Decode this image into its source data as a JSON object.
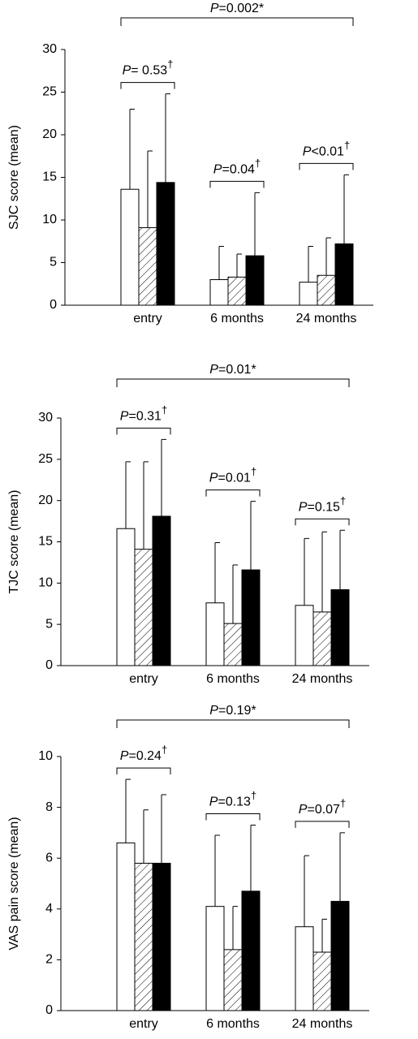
{
  "chart_data": [
    {
      "type": "bar",
      "ylabel": "SJC score (mean)",
      "categories": [
        "entry",
        "6 months",
        "24 months"
      ],
      "ylim": [
        0,
        30
      ],
      "yticks": [
        0,
        5,
        10,
        15,
        20,
        25,
        30
      ],
      "series": [
        {
          "color": "#ffffff",
          "values": [
            13.6,
            3.0,
            2.7
          ],
          "errors": [
            9.4,
            3.9,
            4.2
          ]
        },
        {
          "color": "#ffffff",
          "hatch": true,
          "values": [
            9.1,
            3.3,
            3.5
          ],
          "errors": [
            9.0,
            2.7,
            4.4
          ]
        },
        {
          "color": "#000000",
          "values": [
            14.4,
            5.8,
            7.2
          ],
          "errors": [
            10.4,
            7.4,
            8.1
          ]
        }
      ],
      "annotations": [
        "P=0.002*",
        "P= 0.53†",
        "P=0.04†",
        "P<0.01†"
      ]
    },
    {
      "type": "bar",
      "ylabel": "TJC score (mean)",
      "categories": [
        "entry",
        "6 months",
        "24 months"
      ],
      "ylim": [
        0,
        30
      ],
      "yticks": [
        0,
        5,
        10,
        15,
        20,
        25,
        30
      ],
      "series": [
        {
          "color": "#ffffff",
          "values": [
            16.6,
            7.6,
            7.3
          ],
          "errors": [
            8.1,
            7.3,
            8.1
          ]
        },
        {
          "color": "#ffffff",
          "hatch": true,
          "values": [
            14.1,
            5.1,
            6.5
          ],
          "errors": [
            10.6,
            7.1,
            9.7
          ]
        },
        {
          "color": "#000000",
          "values": [
            18.1,
            11.6,
            9.2
          ],
          "errors": [
            9.3,
            8.3,
            7.2
          ]
        }
      ],
      "annotations": [
        "P=0.01*",
        "P=0.31†",
        "P=0.01†",
        "P=0.15†"
      ]
    },
    {
      "type": "bar",
      "ylabel": "VAS pain score (mean)",
      "categories": [
        "entry",
        "6 months",
        "24 months"
      ],
      "ylim": [
        0,
        10
      ],
      "yticks": [
        0,
        2,
        4,
        6,
        8,
        10
      ],
      "series": [
        {
          "color": "#ffffff",
          "values": [
            6.6,
            4.1,
            3.3
          ],
          "errors": [
            2.5,
            2.8,
            2.8
          ]
        },
        {
          "color": "#ffffff",
          "hatch": true,
          "values": [
            5.8,
            2.4,
            2.3
          ],
          "errors": [
            2.1,
            1.7,
            1.3
          ]
        },
        {
          "color": "#000000",
          "values": [
            5.8,
            4.7,
            4.3
          ],
          "errors": [
            2.7,
            2.6,
            2.7
          ]
        }
      ],
      "annotations": [
        "P=0.19*",
        "P=0.24†",
        "P=0.13†",
        "P=0.07†"
      ]
    }
  ]
}
